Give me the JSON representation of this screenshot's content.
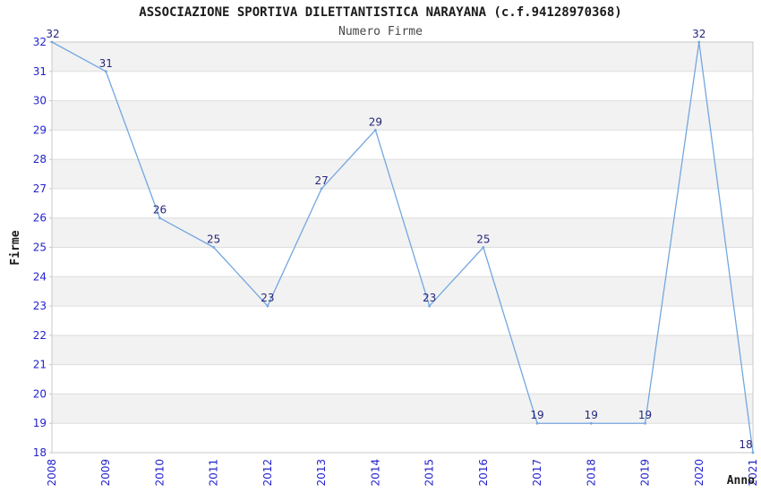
{
  "header": {
    "title": "ASSOCIAZIONE SPORTIVA DILETTANTISTICA NARAYANA (c.f.94128970368)",
    "subtitle": "Numero Firme"
  },
  "chart_data": {
    "type": "line",
    "title": "ASSOCIAZIONE SPORTIVA DILETTANTISTICA NARAYANA (c.f.94128970368)",
    "subtitle": "Numero Firme",
    "xlabel": "Anno",
    "ylabel": "Firme",
    "x": [
      "2008",
      "2009",
      "2010",
      "2011",
      "2012",
      "2013",
      "2014",
      "2015",
      "2016",
      "2017",
      "2018",
      "2019",
      "2020",
      "2021"
    ],
    "values": [
      32,
      31,
      26,
      25,
      23,
      27,
      29,
      23,
      25,
      19,
      19,
      19,
      32,
      18
    ],
    "point_labels": [
      "32",
      "31",
      "26",
      "25",
      "23",
      "27",
      "29",
      "23",
      "25",
      "19",
      "19",
      "19",
      "32",
      "18"
    ],
    "ylim": [
      18,
      32
    ],
    "ytick_step": 1,
    "yticks": [
      18,
      19,
      20,
      21,
      22,
      23,
      24,
      25,
      26,
      27,
      28,
      29,
      30,
      31,
      32
    ],
    "grid": true,
    "banded_background": true,
    "legend": false,
    "colors": {
      "line": "#74a7e0",
      "tick_label": "#2222cc",
      "point_label": "#26267d",
      "band": "#f2f2f2",
      "grid": "#dedede",
      "border": "#c8c8c8",
      "title": "#1a1a1a",
      "subtitle": "#474747"
    }
  }
}
